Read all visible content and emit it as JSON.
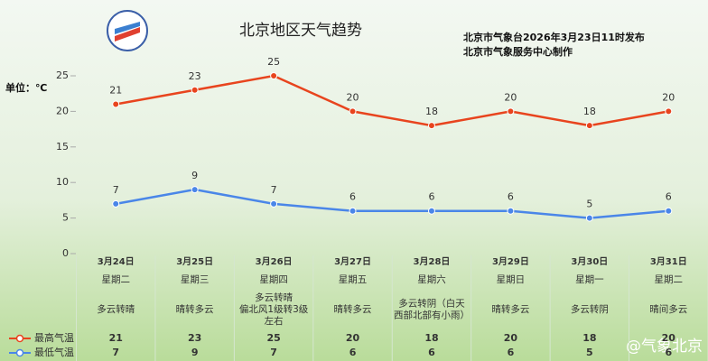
{
  "chart_data": {
    "type": "line",
    "title": "北京地区天气趋势",
    "publisher": [
      "北京市气象台2026年3月23日11时发布",
      "北京市气象服务中心制作"
    ],
    "unit_label": "单位：℃",
    "watermark": "@气象北京",
    "categories": [
      "3月24日",
      "3月25日",
      "3月26日",
      "3月27日",
      "3月28日",
      "3月29日",
      "3月30日",
      "3月31日"
    ],
    "weekdays": [
      "星期二",
      "星期三",
      "星期四",
      "星期五",
      "星期六",
      "星期日",
      "星期一",
      "星期二"
    ],
    "weather": [
      [
        "多云转晴"
      ],
      [
        "晴转多云"
      ],
      [
        "多云转晴",
        "偏北风1级转3级",
        "左右"
      ],
      [
        "晴转多云"
      ],
      [
        "多云转阴（白天",
        "西部北部有小雨）"
      ],
      [
        "晴转多云"
      ],
      [
        "多云转阴"
      ],
      [
        "晴间多云"
      ]
    ],
    "series": [
      {
        "name": "最高气温",
        "color": "#e8441e",
        "values": [
          21,
          23,
          25,
          20,
          18,
          20,
          18,
          20
        ]
      },
      {
        "name": "最低气温",
        "color": "#4a86e8",
        "values": [
          7,
          9,
          7,
          6,
          6,
          6,
          5,
          6
        ]
      }
    ],
    "ylim": [
      0,
      25
    ],
    "yticks": [
      0,
      5,
      10,
      15,
      20,
      25
    ]
  }
}
